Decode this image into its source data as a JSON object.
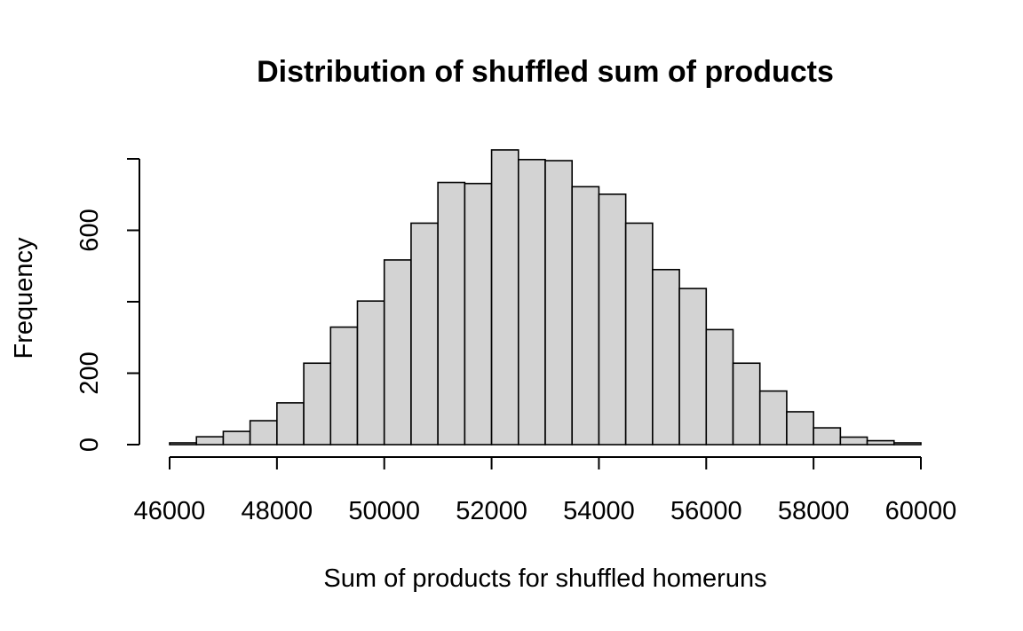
{
  "chart_data": {
    "type": "bar",
    "title": "Distribution of shuffled sum of products",
    "xlabel": "Sum of products for shuffled homeruns",
    "ylabel": "Frequency",
    "bin_width": 500,
    "bin_starts": [
      46000,
      46500,
      47000,
      47500,
      48000,
      48500,
      49000,
      49500,
      50000,
      50500,
      51000,
      51500,
      52000,
      52500,
      53000,
      53500,
      54000,
      54500,
      55000,
      55500,
      56000,
      56500,
      57000,
      57500,
      58000,
      58500,
      59000,
      59500
    ],
    "values": [
      5,
      22,
      37,
      67,
      117,
      228,
      329,
      402,
      517,
      620,
      734,
      731,
      825,
      798,
      795,
      722,
      701,
      620,
      490,
      437,
      322,
      228,
      150,
      92,
      47,
      21,
      11,
      5
    ],
    "xlim": [
      46000,
      60000
    ],
    "ylim": [
      0,
      800
    ],
    "x_ticks": [
      46000,
      48000,
      50000,
      52000,
      54000,
      56000,
      58000,
      60000
    ],
    "x_tick_labels": [
      "46000",
      "48000",
      "50000",
      "52000",
      "54000",
      "56000",
      "58000",
      "60000"
    ],
    "y_ticks": [
      0,
      200,
      400,
      600,
      800
    ],
    "y_tick_labels": [
      "0",
      "200",
      "",
      "600",
      ""
    ],
    "grid": false,
    "colors": {
      "bar_fill": "#d3d3d3",
      "bar_stroke": "#000000"
    }
  }
}
